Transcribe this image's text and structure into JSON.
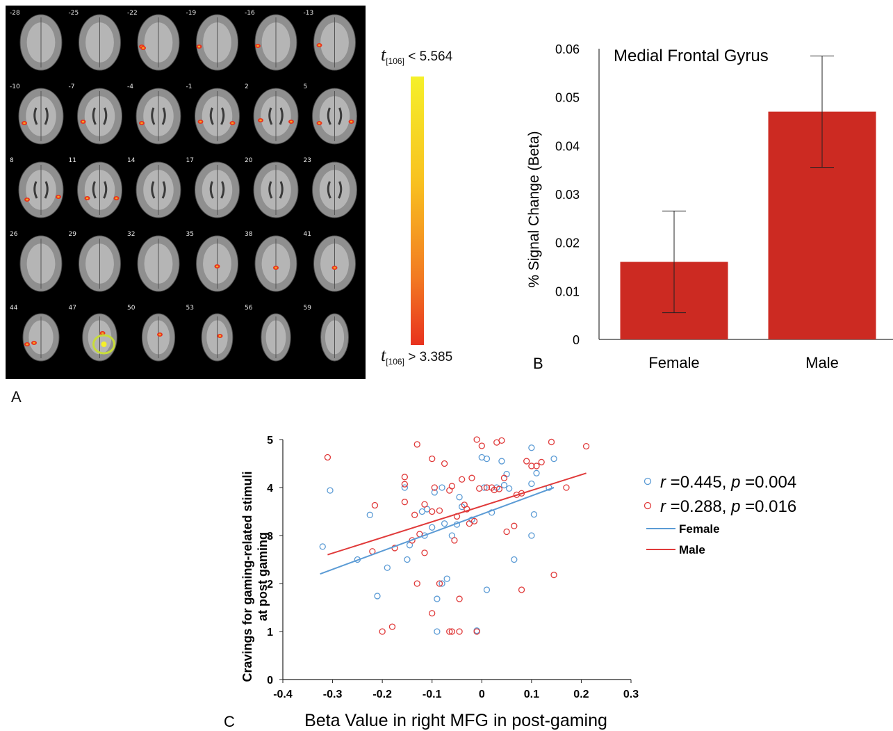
{
  "panel_a": {
    "letter": "A",
    "slices": [
      "-28",
      "-25",
      "-22",
      "-19",
      "-16",
      "-13",
      "-10",
      "-7",
      "-4",
      "-1",
      "2",
      "5",
      "8",
      "11",
      "14",
      "17",
      "20",
      "23",
      "26",
      "29",
      "32",
      "35",
      "38",
      "41",
      "44",
      "47",
      "50",
      "53",
      "56",
      "59"
    ],
    "colorbar": {
      "top_t": "t",
      "top_sub": "[106]",
      "top_value": "< 5.564",
      "bottom_t": "t",
      "bottom_sub": "[106]",
      "bottom_value": "> 3.385",
      "color_low": "#e8321e",
      "color_high": "#f5f02a"
    }
  },
  "chart_data": [
    {
      "type": "bar",
      "panel": "B",
      "title": "Medial Frontal Gyrus",
      "ylabel": "% Signal Change    (Beta)",
      "categories": [
        "Female",
        "Male"
      ],
      "values": [
        0.016,
        0.047
      ],
      "error": [
        0.0105,
        0.0115
      ],
      "ylim": [
        0,
        0.06
      ],
      "yticks": [
        "0",
        "0.01",
        "0.02",
        "0.03",
        "0.04",
        "0.05",
        "0.06"
      ],
      "bar_color": "#cc2a22"
    },
    {
      "type": "scatter",
      "panel": "C",
      "xlabel": "Beta Value in right MFG in post-gaming",
      "ylabel_line1": "Cravings for gaming-related stimuli",
      "ylabel_line2": "at post gaming",
      "xlim": [
        -0.4,
        0.3
      ],
      "ylim": [
        0,
        5
      ],
      "xticks": [
        "-0.4",
        "-0.3",
        "-0.2",
        "-0.1",
        "0",
        "0.1",
        "0.2",
        "0.3"
      ],
      "yticks": [
        "0",
        "1",
        "2",
        "3",
        "4",
        "5"
      ],
      "legend": {
        "female_stat_r": "=0.445,",
        "female_stat_p": "=0.004",
        "male_stat_r": "=0.288,",
        "male_stat_p": "=0.016",
        "r_symbol": "r",
        "p_symbol": "p",
        "female_line": "Female",
        "male_line": "Male"
      },
      "series": [
        {
          "name": "Female",
          "color": "#5b9bd5",
          "fit": [
            [
              -0.325,
              2.2
            ],
            [
              0.145,
              4.0
            ]
          ],
          "points": [
            [
              -0.32,
              2.77
            ],
            [
              -0.305,
              3.94
            ],
            [
              -0.25,
              2.5
            ],
            [
              -0.225,
              3.43
            ],
            [
              -0.21,
              1.74
            ],
            [
              -0.19,
              2.33
            ],
            [
              -0.155,
              4.0
            ],
            [
              -0.15,
              2.5
            ],
            [
              -0.145,
              2.8
            ],
            [
              -0.12,
              3.5
            ],
            [
              -0.11,
              3.55
            ],
            [
              -0.115,
              3.0
            ],
            [
              -0.1,
              3.17
            ],
            [
              -0.095,
              3.9
            ],
            [
              -0.09,
              1.0
            ],
            [
              -0.09,
              1.68
            ],
            [
              -0.08,
              2.0
            ],
            [
              -0.08,
              4.0
            ],
            [
              -0.075,
              3.25
            ],
            [
              -0.07,
              2.1
            ],
            [
              -0.06,
              3.0
            ],
            [
              -0.05,
              3.23
            ],
            [
              -0.045,
              3.8
            ],
            [
              -0.02,
              3.33
            ],
            [
              -0.01,
              1.02
            ],
            [
              0.0,
              4.63
            ],
            [
              0.01,
              4.6
            ],
            [
              0.01,
              1.87
            ],
            [
              0.02,
              3.48
            ],
            [
              0.03,
              4.0
            ],
            [
              0.04,
              4.55
            ],
            [
              0.045,
              4.05
            ],
            [
              0.05,
              4.28
            ],
            [
              0.055,
              3.98
            ],
            [
              0.065,
              2.5
            ],
            [
              0.1,
              4.83
            ],
            [
              0.1,
              3.0
            ],
            [
              0.1,
              4.08
            ],
            [
              0.105,
              3.44
            ],
            [
              0.11,
              4.3
            ],
            [
              0.135,
              4.0
            ],
            [
              0.145,
              4.6
            ],
            [
              0.005,
              4.0
            ],
            [
              -0.04,
              3.6
            ]
          ]
        },
        {
          "name": "Male",
          "color": "#e03a3a",
          "fit": [
            [
              -0.31,
              2.6
            ],
            [
              0.21,
              4.3
            ]
          ],
          "points": [
            [
              -0.31,
              4.63
            ],
            [
              -0.22,
              2.67
            ],
            [
              -0.215,
              3.63
            ],
            [
              -0.2,
              1.0
            ],
            [
              -0.18,
              1.1
            ],
            [
              -0.175,
              2.74
            ],
            [
              -0.155,
              3.7
            ],
            [
              -0.155,
              4.07
            ],
            [
              -0.155,
              4.22
            ],
            [
              -0.14,
              2.9
            ],
            [
              -0.135,
              3.43
            ],
            [
              -0.13,
              4.9
            ],
            [
              -0.13,
              2.0
            ],
            [
              -0.125,
              3.03
            ],
            [
              -0.115,
              3.65
            ],
            [
              -0.115,
              2.64
            ],
            [
              -0.1,
              4.6
            ],
            [
              -0.1,
              3.5
            ],
            [
              -0.1,
              1.38
            ],
            [
              -0.095,
              4.0
            ],
            [
              -0.085,
              3.52
            ],
            [
              -0.085,
              2.0
            ],
            [
              -0.075,
              4.5
            ],
            [
              -0.065,
              1.0
            ],
            [
              -0.065,
              3.94
            ],
            [
              -0.06,
              4.03
            ],
            [
              -0.06,
              1.0
            ],
            [
              -0.055,
              2.9
            ],
            [
              -0.05,
              3.4
            ],
            [
              -0.045,
              1.68
            ],
            [
              -0.045,
              1.0
            ],
            [
              -0.04,
              4.17
            ],
            [
              -0.035,
              3.64
            ],
            [
              -0.03,
              3.55
            ],
            [
              -0.025,
              3.25
            ],
            [
              -0.02,
              4.2
            ],
            [
              -0.015,
              3.3
            ],
            [
              -0.01,
              1.0
            ],
            [
              -0.01,
              5.0
            ],
            [
              -0.005,
              3.98
            ],
            [
              0.0,
              4.87
            ],
            [
              0.02,
              4.0
            ],
            [
              0.025,
              3.95
            ],
            [
              0.03,
              4.94
            ],
            [
              0.035,
              3.97
            ],
            [
              0.04,
              4.98
            ],
            [
              0.045,
              4.2
            ],
            [
              0.05,
              3.08
            ],
            [
              0.065,
              3.2
            ],
            [
              0.07,
              3.85
            ],
            [
              0.08,
              3.88
            ],
            [
              0.08,
              1.87
            ],
            [
              0.09,
              4.55
            ],
            [
              0.1,
              4.45
            ],
            [
              0.11,
              4.45
            ],
            [
              0.12,
              4.53
            ],
            [
              0.14,
              4.95
            ],
            [
              0.145,
              2.18
            ],
            [
              0.17,
              4.0
            ],
            [
              0.21,
              4.86
            ],
            [
              0.01,
              4.0
            ]
          ]
        }
      ]
    }
  ]
}
